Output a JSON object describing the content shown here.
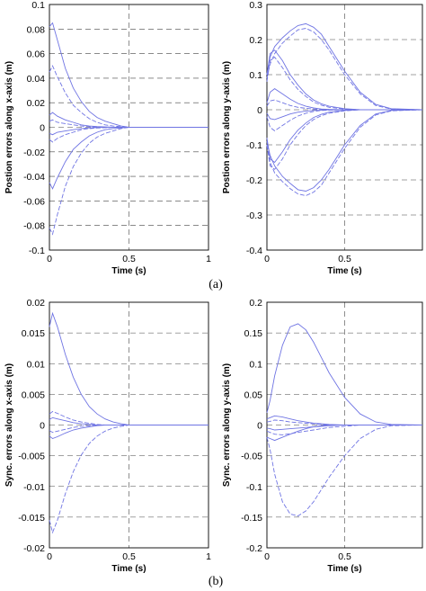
{
  "captions": [
    "(a)",
    "(b)"
  ],
  "chart_data": [
    {
      "type": "line",
      "xlabel": "Time (s)",
      "ylabel": "Postion errors along x-axis (m)",
      "xlim": [
        0,
        1
      ],
      "ylim": [
        -0.1,
        0.1
      ],
      "xticks": [
        0,
        0.5,
        1
      ],
      "yticks": [
        0.1,
        0.08,
        0.06,
        0.04,
        0.02,
        0,
        -0.02,
        -0.04,
        -0.06,
        -0.08,
        -0.1
      ],
      "ytick_labels": [
        "0.1",
        "0.08",
        "0.06",
        "0.04",
        "0.02",
        "0",
        "-0.02",
        "-0.04",
        "-0.06",
        "-0.08",
        "-0.1"
      ],
      "xtick_labels": [
        "0",
        "0.5",
        "1"
      ],
      "grid": "dashed",
      "x": [
        0,
        0.02,
        0.05,
        0.1,
        0.15,
        0.2,
        0.25,
        0.3,
        0.35,
        0.4,
        0.45,
        0.5,
        0.6,
        0.8,
        1.0
      ],
      "series": [
        {
          "values": [
            0.082,
            0.085,
            0.071,
            0.048,
            0.032,
            0.021,
            0.013,
            0.008,
            0.005,
            0.003,
            0.001,
            0,
            0,
            0,
            0
          ]
        },
        {
          "values": [
            0.045,
            0.05,
            0.041,
            0.028,
            0.018,
            0.012,
            0.007,
            0.004,
            0.002,
            0.001,
            0.0005,
            0,
            0,
            0,
            0
          ]
        },
        {
          "values": [
            0.01,
            0.012,
            0.009,
            0.006,
            0.004,
            0.002,
            0.001,
            0.0006,
            0.0003,
            0.0001,
            0,
            0,
            0,
            0,
            0
          ]
        },
        {
          "values": [
            0.005,
            0.006,
            0.004,
            0.003,
            0.002,
            0.001,
            0.0005,
            0.0002,
            0.0001,
            0,
            0,
            0,
            0,
            0,
            0
          ]
        },
        {
          "values": [
            -0.005,
            -0.006,
            -0.004,
            -0.003,
            -0.002,
            -0.001,
            -0.0005,
            -0.0002,
            -0.0001,
            0,
            0,
            0,
            0,
            0,
            0
          ]
        },
        {
          "values": [
            -0.01,
            -0.012,
            -0.009,
            -0.006,
            -0.004,
            -0.002,
            -0.001,
            -0.0006,
            -0.0003,
            -0.0001,
            0,
            0,
            0,
            0,
            0
          ]
        },
        {
          "values": [
            -0.045,
            -0.05,
            -0.041,
            -0.028,
            -0.018,
            -0.012,
            -0.007,
            -0.004,
            -0.002,
            -0.001,
            -0.0005,
            0,
            0,
            0,
            0
          ]
        },
        {
          "values": [
            -0.082,
            -0.087,
            -0.071,
            -0.048,
            -0.032,
            -0.021,
            -0.013,
            -0.008,
            -0.005,
            -0.003,
            -0.001,
            0,
            0,
            0,
            0
          ]
        }
      ]
    },
    {
      "type": "line",
      "xlabel": "Time (s)",
      "ylabel": "Postion errors along y-axis (m)",
      "xlim": [
        0,
        1
      ],
      "ylim": [
        -0.4,
        0.3
      ],
      "xticks": [
        0,
        0.5
      ],
      "yticks": [
        0.3,
        0.2,
        0.1,
        0,
        -0.1,
        -0.2,
        -0.3,
        -0.4
      ],
      "ytick_labels": [
        "0.3",
        "0.2",
        "0.1",
        "0",
        "-0.1",
        "-0.2",
        "-0.3",
        "-0.4"
      ],
      "xtick_labels": [
        "0",
        "0.5"
      ],
      "grid": "dashed",
      "x": [
        0,
        0.02,
        0.05,
        0.1,
        0.15,
        0.2,
        0.25,
        0.3,
        0.35,
        0.4,
        0.5,
        0.6,
        0.7,
        0.8,
        1.0
      ],
      "series": [
        {
          "values": [
            0.1,
            0.15,
            0.18,
            0.205,
            0.225,
            0.24,
            0.245,
            0.235,
            0.215,
            0.18,
            0.11,
            0.05,
            0.015,
            0.003,
            0
          ]
        },
        {
          "values": [
            0.09,
            0.13,
            0.16,
            0.19,
            0.21,
            0.228,
            0.232,
            0.222,
            0.2,
            0.17,
            0.1,
            0.045,
            0.012,
            0.002,
            0
          ]
        },
        {
          "values": [
            0.1,
            0.16,
            0.17,
            0.14,
            0.1,
            0.07,
            0.045,
            0.028,
            0.017,
            0.01,
            0.003,
            0,
            0,
            0,
            0
          ]
        },
        {
          "values": [
            0.08,
            0.14,
            0.15,
            0.12,
            0.085,
            0.058,
            0.038,
            0.022,
            0.013,
            0.007,
            0.002,
            0,
            0,
            0,
            0
          ]
        },
        {
          "values": [
            0.02,
            0.05,
            0.06,
            0.045,
            0.03,
            0.018,
            0.01,
            0.005,
            0.002,
            0.001,
            0,
            0,
            0,
            0,
            0
          ]
        },
        {
          "values": [
            0.01,
            0.025,
            0.028,
            0.02,
            0.012,
            0.007,
            0.004,
            0.002,
            0.001,
            0,
            0,
            0,
            0,
            0,
            0
          ]
        },
        {
          "values": [
            -0.01,
            -0.025,
            -0.028,
            -0.02,
            -0.012,
            -0.007,
            -0.004,
            -0.002,
            -0.001,
            0,
            0,
            0,
            0,
            0,
            0
          ]
        },
        {
          "values": [
            -0.02,
            -0.05,
            -0.06,
            -0.045,
            -0.03,
            -0.018,
            -0.01,
            -0.005,
            -0.002,
            -0.001,
            0,
            0,
            0,
            0,
            0
          ]
        },
        {
          "values": [
            -0.08,
            -0.14,
            -0.15,
            -0.12,
            -0.085,
            -0.058,
            -0.038,
            -0.022,
            -0.013,
            -0.007,
            -0.002,
            0,
            0,
            0,
            0
          ]
        },
        {
          "values": [
            -0.1,
            -0.16,
            -0.17,
            -0.14,
            -0.1,
            -0.07,
            -0.045,
            -0.028,
            -0.017,
            -0.01,
            -0.003,
            0,
            0,
            0,
            0
          ]
        },
        {
          "values": [
            -0.09,
            -0.13,
            -0.16,
            -0.19,
            -0.21,
            -0.228,
            -0.232,
            -0.222,
            -0.2,
            -0.17,
            -0.1,
            -0.045,
            -0.012,
            -0.002,
            0
          ]
        },
        {
          "values": [
            -0.1,
            -0.15,
            -0.18,
            -0.205,
            -0.225,
            -0.24,
            -0.245,
            -0.235,
            -0.215,
            -0.18,
            -0.11,
            -0.05,
            -0.015,
            -0.003,
            0
          ]
        }
      ]
    },
    {
      "type": "line",
      "xlabel": "Time (s)",
      "ylabel": "Sync. errors along x-axis (m)",
      "xlim": [
        0,
        1
      ],
      "ylim": [
        -0.02,
        0.02
      ],
      "xticks": [
        0,
        0.5,
        1
      ],
      "yticks": [
        0.02,
        0.015,
        0.01,
        0.005,
        0,
        -0.005,
        -0.01,
        -0.015,
        -0.02
      ],
      "ytick_labels": [
        "0.02",
        "0.015",
        "0.01",
        "0.005",
        "0",
        "-0.005",
        "-0.01",
        "-0.015",
        "-0.02"
      ],
      "xtick_labels": [
        "0",
        "0.5",
        "1"
      ],
      "grid": "dashed",
      "x": [
        0,
        0.02,
        0.05,
        0.1,
        0.15,
        0.2,
        0.25,
        0.3,
        0.35,
        0.4,
        0.45,
        0.5,
        0.6,
        0.8,
        1.0
      ],
      "series": [
        {
          "values": [
            0.016,
            0.0182,
            0.016,
            0.0115,
            0.0078,
            0.005,
            0.003,
            0.0018,
            0.001,
            0.0005,
            0.0002,
            0,
            0,
            0,
            0
          ]
        },
        {
          "values": [
            0.0018,
            0.0022,
            0.0019,
            0.0013,
            0.0008,
            0.0005,
            0.0003,
            0.0001,
            0,
            0,
            0,
            0,
            0,
            0,
            0
          ]
        },
        {
          "values": [
            0.0009,
            0.0012,
            0.001,
            0.0007,
            0.0004,
            0.0002,
            0.0001,
            0,
            0,
            0,
            0,
            0,
            0,
            0,
            0
          ]
        },
        {
          "values": [
            -0.0009,
            -0.0012,
            -0.001,
            -0.0007,
            -0.0004,
            -0.0002,
            -0.0001,
            0,
            0,
            0,
            0,
            0,
            0,
            0,
            0
          ]
        },
        {
          "values": [
            -0.0018,
            -0.0022,
            -0.0019,
            -0.0013,
            -0.0008,
            -0.0005,
            -0.0003,
            -0.0001,
            0,
            0,
            0,
            0,
            0,
            0,
            0
          ]
        },
        {
          "values": [
            -0.0155,
            -0.0175,
            -0.0155,
            -0.0112,
            -0.0076,
            -0.0049,
            -0.003,
            -0.0018,
            -0.001,
            -0.0005,
            -0.0002,
            0,
            0,
            0,
            0
          ]
        }
      ]
    },
    {
      "type": "line",
      "xlabel": "Time (s)",
      "ylabel": "Sync. errors along y-axis (m)",
      "xlim": [
        0,
        1
      ],
      "ylim": [
        -0.2,
        0.2
      ],
      "xticks": [
        0,
        0.5
      ],
      "yticks": [
        0.2,
        0.15,
        0.1,
        0.05,
        0,
        -0.05,
        -0.1,
        -0.15,
        -0.2
      ],
      "ytick_labels": [
        "0.2",
        "0.15",
        "0.1",
        "0.05",
        "0",
        "-0.05",
        "-0.1",
        "-0.15",
        "-0.2"
      ],
      "xtick_labels": [
        "0",
        "0.5"
      ],
      "grid": "dashed",
      "x": [
        0,
        0.02,
        0.05,
        0.1,
        0.15,
        0.2,
        0.25,
        0.3,
        0.35,
        0.4,
        0.5,
        0.6,
        0.7,
        0.8,
        1.0
      ],
      "series": [
        {
          "values": [
            0.02,
            0.04,
            0.08,
            0.13,
            0.16,
            0.165,
            0.155,
            0.135,
            0.11,
            0.085,
            0.045,
            0.018,
            0.005,
            0.001,
            0
          ]
        },
        {
          "values": [
            -0.02,
            -0.04,
            -0.08,
            -0.125,
            -0.145,
            -0.148,
            -0.14,
            -0.125,
            -0.105,
            -0.085,
            -0.05,
            -0.022,
            -0.007,
            -0.001,
            0
          ]
        },
        {
          "values": [
            0.01,
            0.012,
            0.015,
            0.013,
            0.01,
            0.007,
            0.005,
            0.003,
            0.002,
            0.001,
            0,
            0,
            0,
            0,
            0
          ]
        },
        {
          "values": [
            0.005,
            0.006,
            0.008,
            0.007,
            0.005,
            0.004,
            0.003,
            0.002,
            0.001,
            0,
            0,
            0,
            0,
            0,
            0
          ]
        },
        {
          "values": [
            -0.005,
            -0.006,
            -0.008,
            -0.007,
            -0.006,
            -0.005,
            -0.004,
            -0.003,
            -0.002,
            -0.001,
            0,
            0,
            0,
            0,
            0
          ]
        },
        {
          "values": [
            -0.01,
            -0.012,
            -0.015,
            -0.016,
            -0.014,
            -0.012,
            -0.01,
            -0.008,
            -0.006,
            -0.004,
            -0.002,
            0,
            0,
            0,
            0
          ]
        },
        {
          "values": [
            -0.02,
            -0.022,
            -0.025,
            -0.02,
            -0.015,
            -0.01,
            -0.006,
            -0.003,
            -0.001,
            0,
            0,
            0,
            0,
            0,
            0
          ]
        }
      ]
    }
  ],
  "colors": {
    "series": "#6f74e3",
    "grid": "#444444",
    "axes": "#000000"
  }
}
